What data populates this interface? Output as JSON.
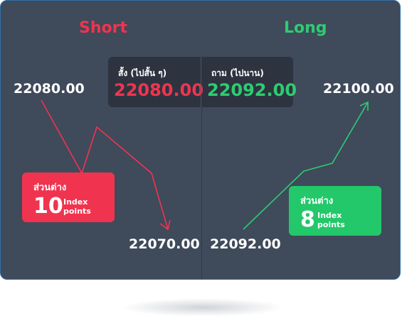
{
  "short": {
    "title": "Short",
    "start_price": "22080.00",
    "end_price": "22070.00",
    "diff_label": "ส่วนต่าง",
    "diff_value": "10",
    "diff_unit_line1": "Index",
    "diff_unit_line2": "points"
  },
  "long": {
    "title": "Long",
    "start_price": "22092.00",
    "end_price": "22100.00",
    "diff_label": "ส่วนต่าง",
    "diff_value": "8",
    "diff_unit_line1": "Index",
    "diff_unit_line2": "points"
  },
  "quote": {
    "sell_label": "สั้ง (ไปสั้น ๆ)",
    "sell_price": "22080.00",
    "buy_label": "ถาม (ไปนาน)",
    "buy_price": "22092.00"
  },
  "colors": {
    "card_bg": "#3f4a5b",
    "short": "#f0344f",
    "long": "#2ecc71",
    "long_box": "#22c86a",
    "quote_bg": "#2d3440"
  }
}
